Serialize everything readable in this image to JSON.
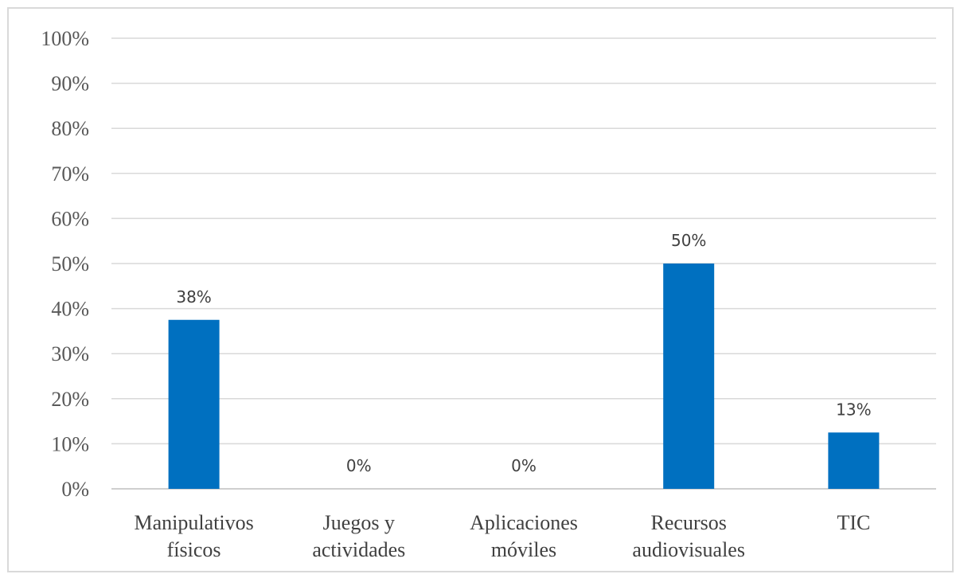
{
  "chart_data": {
    "type": "bar",
    "title": "",
    "xlabel": "",
    "ylabel": "",
    "categories": [
      [
        "Manipulativos",
        "físicos"
      ],
      [
        "Juegos y",
        "actividades"
      ],
      [
        "Aplicaciones",
        "móviles"
      ],
      [
        "Recursos",
        "audiovisuales"
      ],
      [
        "TIC"
      ]
    ],
    "values": [
      37.5,
      0,
      0,
      50,
      12.5
    ],
    "data_labels": [
      "38%",
      "0%",
      "0%",
      "50%",
      "13%"
    ],
    "ylim": [
      0,
      100
    ],
    "yticks": [
      0,
      10,
      20,
      30,
      40,
      50,
      60,
      70,
      80,
      90,
      100
    ],
    "ytick_labels": [
      "0%",
      "10%",
      "20%",
      "30%",
      "40%",
      "50%",
      "60%",
      "70%",
      "80%",
      "90%",
      "100%"
    ],
    "grid": true,
    "legend": "none",
    "bar_color": "#0070c0",
    "grid_color": "#d9d9d9",
    "border_color": "#d9d9d9"
  }
}
